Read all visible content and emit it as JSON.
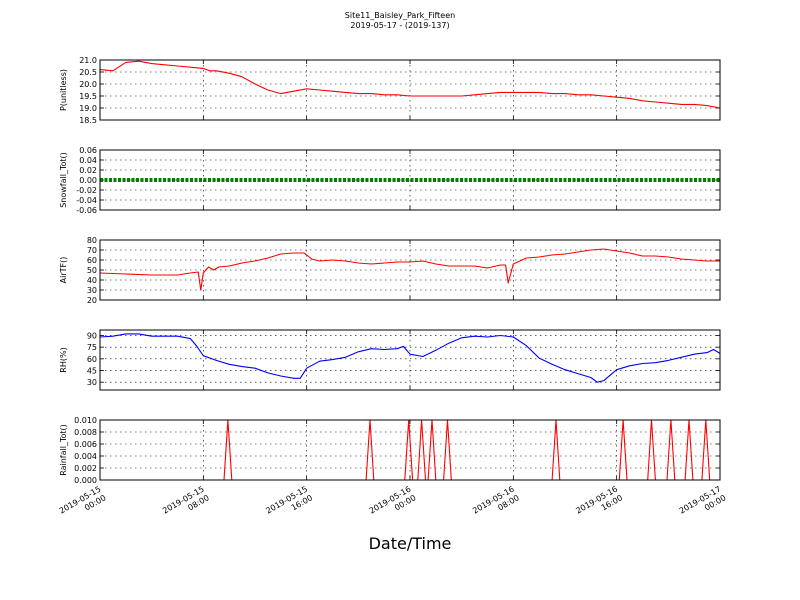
{
  "figure": {
    "title": "Site11_Baisley_Park_Fifteen",
    "subtitle": "2019-05-17 - (2019-137)",
    "xlabel": "Date/Time",
    "x_ticks": [
      "2019-05-15\n00:00",
      "2019-05-15\n08:00",
      "2019-05-15\n16:00",
      "2019-05-16\n00:00",
      "2019-05-16\n08:00",
      "2019-05-16\n16:00",
      "2019-05-17\n00:00"
    ]
  },
  "chart_data": [
    {
      "type": "line",
      "ylabel": "P(unitless)",
      "color": "#ff0000",
      "ylim": [
        18.5,
        21.0
      ],
      "yticks": [
        "18.5",
        "19.0",
        "19.5",
        "20.0",
        "20.5",
        "21.0"
      ],
      "x_hours": [
        0,
        1,
        2,
        3,
        4,
        5,
        6,
        7,
        8,
        8.5,
        9,
        10,
        11,
        12,
        13,
        14,
        15,
        16,
        17,
        18,
        19,
        20,
        21,
        22,
        23,
        24,
        25,
        26,
        27,
        28,
        29,
        30,
        31,
        32,
        33,
        34,
        35,
        36,
        37,
        38,
        39,
        40,
        41,
        42,
        43,
        44,
        45,
        46,
        47,
        48
      ],
      "values": [
        20.6,
        20.55,
        20.9,
        20.95,
        20.85,
        20.8,
        20.75,
        20.7,
        20.65,
        20.55,
        20.55,
        20.45,
        20.3,
        20.0,
        19.75,
        19.6,
        19.7,
        19.8,
        19.75,
        19.7,
        19.65,
        19.6,
        19.6,
        19.55,
        19.55,
        19.5,
        19.5,
        19.5,
        19.5,
        19.5,
        19.55,
        19.6,
        19.65,
        19.65,
        19.65,
        19.65,
        19.6,
        19.6,
        19.55,
        19.55,
        19.5,
        19.45,
        19.4,
        19.3,
        19.25,
        19.2,
        19.15,
        19.15,
        19.1,
        19.0
      ]
    },
    {
      "type": "line",
      "ylabel": "Snowfall_Tot()",
      "color": "#008000",
      "ylim": [
        -0.06,
        0.06
      ],
      "yticks": [
        "-0.06",
        "-0.04",
        "-0.02",
        "0.00",
        "0.02",
        "0.04",
        "0.06"
      ],
      "x_hours": [
        0,
        48
      ],
      "values": [
        0.0,
        0.0
      ]
    },
    {
      "type": "line",
      "ylabel": "AirTF()",
      "color": "#ff0000",
      "ylim": [
        20,
        80
      ],
      "yticks": [
        "20",
        "30",
        "40",
        "50",
        "60",
        "70",
        "80"
      ],
      "x_hours": [
        0,
        2,
        4,
        6,
        7,
        7.6,
        7.8,
        8.0,
        8.4,
        8.8,
        9.2,
        10,
        11,
        12,
        13,
        14,
        15,
        15.8,
        16.4,
        17,
        18,
        19,
        20,
        21,
        22,
        23,
        24,
        25,
        26,
        27,
        28,
        29,
        30,
        31,
        31.4,
        31.6,
        32,
        33,
        34,
        35,
        36,
        37,
        38,
        39,
        40,
        41,
        42,
        43,
        44,
        45,
        46,
        47,
        48
      ],
      "values": [
        47,
        46,
        45,
        45,
        47,
        48,
        30,
        47,
        53,
        50,
        53,
        54,
        57,
        59,
        62,
        66,
        67,
        67,
        61,
        59,
        60,
        59,
        57,
        56,
        57,
        58,
        58,
        59,
        56,
        54,
        54,
        54,
        52,
        55,
        55,
        37,
        56,
        62,
        63,
        65,
        66,
        68,
        70,
        71,
        69,
        67,
        64,
        64,
        63,
        61,
        60,
        59,
        59
      ]
    },
    {
      "type": "line",
      "ylabel": "RH(%)",
      "color": "#0000ff",
      "ylim": [
        20,
        97
      ],
      "yticks": [
        "30",
        "45",
        "60",
        "75",
        "90"
      ],
      "x_hours": [
        0,
        1,
        2,
        3,
        4,
        5,
        6,
        7,
        7.5,
        8,
        9,
        10,
        11,
        12,
        13,
        14,
        15,
        15.5,
        16,
        17,
        18,
        19,
        20,
        21,
        22,
        23,
        23.5,
        24,
        25,
        26,
        27,
        28,
        29,
        30,
        31,
        32,
        33,
        34,
        35,
        36,
        37,
        38,
        38.5,
        39,
        40,
        41,
        42,
        43,
        44,
        45,
        46,
        47,
        47.5,
        48
      ],
      "values": [
        88,
        89,
        92,
        92,
        89,
        89,
        89,
        86,
        76,
        64,
        58,
        53,
        50,
        48,
        42,
        38,
        35,
        35,
        48,
        57,
        59,
        62,
        69,
        73,
        72,
        73,
        76,
        66,
        63,
        71,
        80,
        87,
        89,
        88,
        90,
        88,
        77,
        61,
        53,
        46,
        41,
        36,
        30,
        32,
        46,
        51,
        54,
        55,
        58,
        62,
        66,
        68,
        72,
        67
      ]
    },
    {
      "type": "line",
      "ylabel": "Rainfall_Tot()",
      "color": "#ff0000",
      "ylim": [
        0.0,
        0.01
      ],
      "yticks": [
        "0.000",
        "0.002",
        "0.004",
        "0.006",
        "0.008",
        "0.010"
      ],
      "x_hours": [
        0,
        9.6,
        9.9,
        10.2,
        20.6,
        20.9,
        21.2,
        23.6,
        23.9,
        24.2,
        24.6,
        24.9,
        25.2,
        25.4,
        25.7,
        26.0,
        26.6,
        26.9,
        27.2,
        35.0,
        35.3,
        35.6,
        40.2,
        40.5,
        40.8,
        42.4,
        42.7,
        43.0,
        43.9,
        44.2,
        44.5,
        45.3,
        45.6,
        45.9,
        46.6,
        46.9,
        47.2,
        48
      ],
      "values": [
        0,
        0,
        0.01,
        0,
        0,
        0.01,
        0,
        0,
        0.01,
        0,
        0,
        0.01,
        0,
        0,
        0.01,
        0,
        0,
        0.01,
        0,
        0,
        0.01,
        0,
        0,
        0.01,
        0,
        0,
        0.01,
        0,
        0,
        0.01,
        0,
        0,
        0.01,
        0,
        0,
        0.01,
        0,
        0
      ]
    }
  ]
}
